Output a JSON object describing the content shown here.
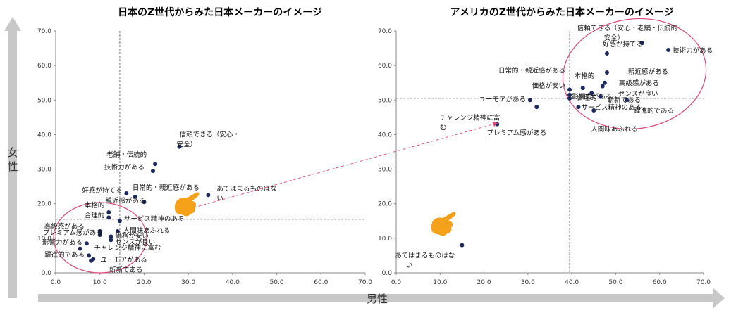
{
  "axes": {
    "x_label": "男性",
    "y_label": "女性",
    "arrow_color": "#c8c8c8"
  },
  "colors": {
    "point": "#1f2a5c",
    "ellipse": "#d9487a",
    "connector": "#d9487a",
    "hand": "#f5a11a"
  },
  "chart_data": [
    {
      "type": "scatter",
      "title": "日本のZ世代からみた日本メーカーのイメージ",
      "xlim": [
        0,
        70
      ],
      "ylim": [
        0,
        70
      ],
      "x_ticks": [
        "0.0",
        "10.0",
        "20.0",
        "30.0",
        "40.0",
        "50.0",
        "60.0",
        "70.0"
      ],
      "y_ticks": [
        "0.0",
        "10.0",
        "20.0",
        "30.0",
        "40.0",
        "50.0",
        "60.0",
        "70.0"
      ],
      "x_avg": 14.5,
      "y_avg": 15.5,
      "points": [
        {
          "label": "信頼できる（安心・安全）",
          "x": 28.0,
          "y": 36.5
        },
        {
          "label": "老舗・伝統的",
          "x": 22.5,
          "y": 31.5
        },
        {
          "label": "技術力がある",
          "x": 22.0,
          "y": 29.5
        },
        {
          "label": "あてはまるものはない",
          "x": 34.5,
          "y": 22.5
        },
        {
          "label": "好感が持てる",
          "x": 16.0,
          "y": 23.0
        },
        {
          "label": "日常的・親近感がある",
          "x": 18.0,
          "y": 22.0
        },
        {
          "label": "親近感がある",
          "x": 20.0,
          "y": 20.5
        },
        {
          "label": "本格的",
          "x": 12.0,
          "y": 17.5
        },
        {
          "label": "合理的",
          "x": 12.0,
          "y": 16.0
        },
        {
          "label": "サービス精神のある",
          "x": 14.5,
          "y": 15.0
        },
        {
          "label": "高級感がある",
          "x": 10.0,
          "y": 12.0
        },
        {
          "label": "プレミアム感がある",
          "x": 10.0,
          "y": 11.0
        },
        {
          "label": "人間味あふれる",
          "x": 14.0,
          "y": 12.0
        },
        {
          "label": "価格が安い",
          "x": 12.5,
          "y": 10.5
        },
        {
          "label": "センスが良い",
          "x": 12.5,
          "y": 9.5
        },
        {
          "label": "影響力がある",
          "x": 7.0,
          "y": 8.5
        },
        {
          "label": "チャレンジ精神に富む",
          "x": 5.5,
          "y": 7.0
        },
        {
          "label": "躍進的である",
          "x": 7.5,
          "y": 5.0
        },
        {
          "label": "ユーモアがある",
          "x": 8.5,
          "y": 4.0
        },
        {
          "label": "斬新である",
          "x": 8.0,
          "y": 3.5
        }
      ]
    },
    {
      "type": "scatter",
      "title": "アメリカのZ世代からみた日本メーカーのイメージ",
      "xlim": [
        0,
        70
      ],
      "ylim": [
        0,
        70
      ],
      "x_ticks": [
        "0.0",
        "10.0",
        "20.0",
        "30.0",
        "40.0",
        "50.0",
        "60.0",
        "70.0"
      ],
      "y_ticks": [
        "0.0",
        "10.0",
        "20.0",
        "30.0",
        "40.0",
        "50.0",
        "60.0",
        "70.0"
      ],
      "x_avg": 39.5,
      "y_avg": 50.5,
      "points": [
        {
          "label": "信頼できる（安心・老舗・伝統的安全）",
          "x": 56.0,
          "y": 66.5
        },
        {
          "label": "技術力がある",
          "x": 62.0,
          "y": 64.5
        },
        {
          "label": "好感が持てる",
          "x": 48.0,
          "y": 63.5
        },
        {
          "label": "親近感がある",
          "x": 48.0,
          "y": 58.0
        },
        {
          "label": "高級感がある",
          "x": 47.5,
          "y": 55.0
        },
        {
          "label": "センスが良い",
          "x": 47.0,
          "y": 54.0
        },
        {
          "label": "本格的",
          "x": 42.5,
          "y": 53.5
        },
        {
          "label": "日常的・親近感がある",
          "x": 39.5,
          "y": 53.0
        },
        {
          "label": "価格が安い",
          "x": 39.5,
          "y": 51.5
        },
        {
          "label": "合理的",
          "x": 39.5,
          "y": 50.5
        },
        {
          "label": "影響力がある",
          "x": 44.5,
          "y": 52.0
        },
        {
          "label": "斬新である",
          "x": 46.5,
          "y": 51.0
        },
        {
          "label": "ユーモアがある",
          "x": 30.5,
          "y": 50.0
        },
        {
          "label": "躍進的である",
          "x": 52.5,
          "y": 50.0
        },
        {
          "label": "サービス精神のある",
          "x": 41.5,
          "y": 48.0
        },
        {
          "label": "プレミアム感がある",
          "x": 32.0,
          "y": 48.0
        },
        {
          "label": "人間味あふれる",
          "x": 45.0,
          "y": 47.0
        },
        {
          "label": "チャレンジ精神に富む",
          "x": 23.0,
          "y": 43.0
        },
        {
          "label": "あてはまるものはない",
          "x": 15.0,
          "y": 8.0
        }
      ]
    }
  ]
}
